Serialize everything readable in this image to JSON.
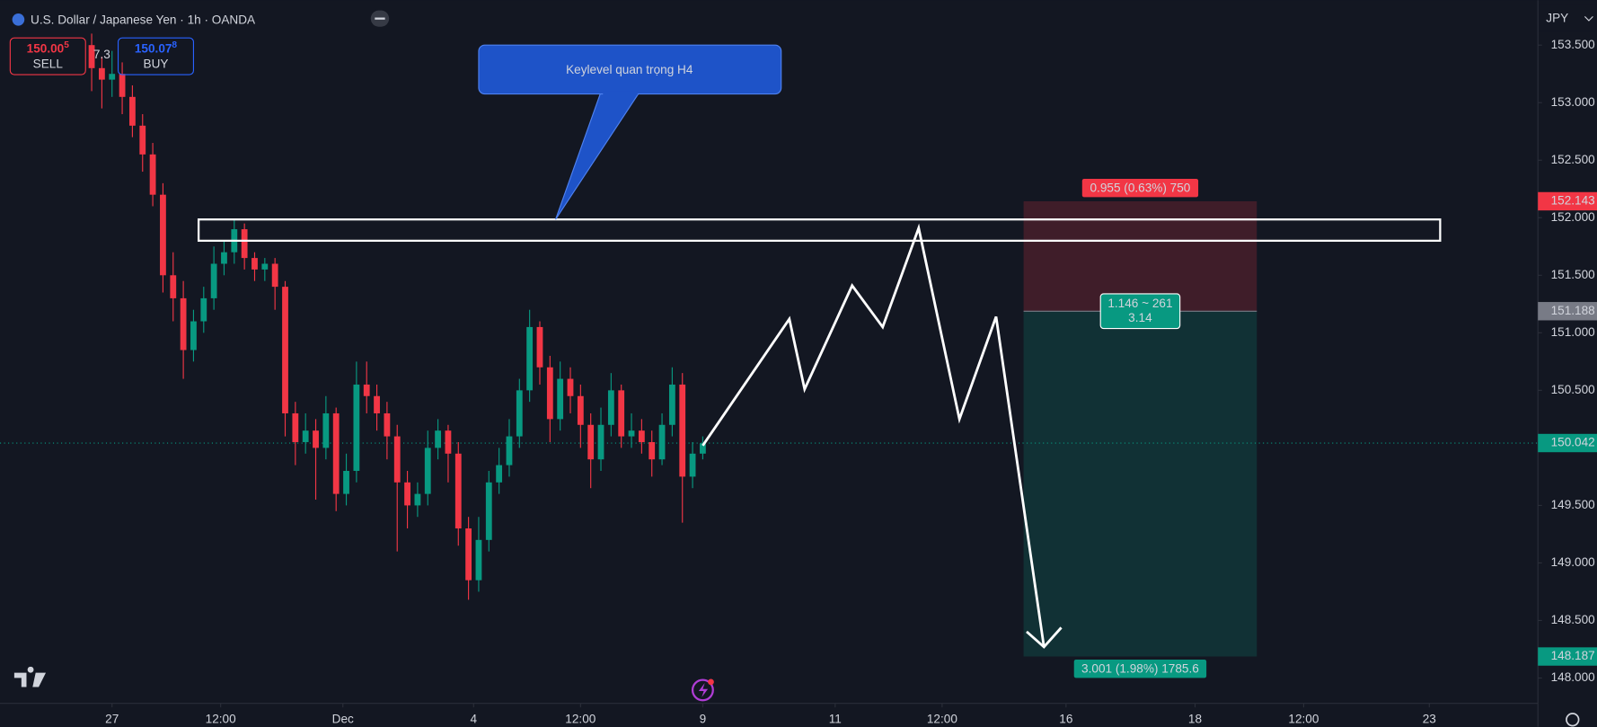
{
  "header": {
    "title": "U.S. Dollar / Japanese Yen · 1h · OANDA",
    "sell_price": "150.00",
    "sell_pip": "5",
    "sell": "SELL",
    "spread": "7.3",
    "buy_price": "150.07",
    "buy_pip": "8",
    "buy": "BUY",
    "currency": "JPY"
  },
  "chart_data": {
    "type": "candlestick",
    "up_color": "#089981",
    "down_color": "#f23645",
    "x": [
      27,
      30,
      33,
      36,
      39,
      42,
      45,
      48,
      51,
      54,
      57,
      60,
      63,
      66,
      69,
      72,
      75,
      78,
      81,
      84,
      87,
      90,
      93,
      96,
      99,
      102,
      105,
      108,
      111,
      114,
      117,
      120,
      123,
      126,
      129,
      132,
      135,
      138,
      141,
      144,
      147,
      150,
      153,
      156,
      159,
      162,
      165,
      168,
      171,
      174,
      177,
      180,
      183,
      186,
      189,
      192,
      195,
      198,
      201,
      204,
      207
    ],
    "open": [
      153.5,
      153.3,
      153.2,
      153.25,
      153.05,
      152.8,
      152.55,
      152.2,
      151.5,
      151.3,
      150.85,
      151.1,
      151.3,
      151.6,
      151.7,
      151.9,
      151.65,
      151.55,
      151.6,
      151.4,
      150.3,
      150.05,
      150.15,
      150.0,
      150.3,
      149.6,
      149.8,
      150.55,
      150.45,
      150.3,
      150.1,
      149.7,
      149.5,
      149.6,
      150.0,
      150.15,
      149.95,
      149.3,
      148.85,
      149.2,
      149.7,
      149.85,
      150.1,
      150.5,
      151.05,
      150.7,
      150.25,
      150.6,
      150.45,
      150.2,
      149.9,
      150.2,
      150.5,
      150.1,
      150.15,
      150.05,
      149.9,
      150.2,
      150.55,
      149.75,
      149.95
    ],
    "high": [
      153.6,
      153.4,
      153.45,
      153.35,
      153.15,
      152.9,
      152.65,
      152.3,
      151.7,
      151.45,
      151.2,
      151.4,
      151.75,
      151.8,
      151.98,
      151.95,
      151.7,
      151.65,
      151.65,
      151.45,
      150.4,
      150.3,
      150.25,
      150.45,
      150.35,
      149.95,
      150.75,
      150.75,
      150.55,
      150.4,
      150.2,
      149.8,
      149.7,
      150.15,
      150.25,
      150.2,
      150.05,
      149.4,
      149.4,
      149.8,
      150.0,
      150.25,
      150.6,
      151.2,
      151.1,
      150.8,
      150.75,
      150.7,
      150.55,
      150.3,
      150.35,
      150.65,
      150.55,
      150.3,
      150.25,
      150.15,
      150.3,
      150.7,
      150.65,
      150.05,
      150.1
    ],
    "low": [
      153.1,
      152.95,
      153.05,
      152.9,
      152.7,
      152.4,
      152.1,
      151.35,
      151.1,
      150.6,
      150.75,
      151.0,
      151.2,
      151.5,
      151.6,
      151.55,
      151.45,
      151.45,
      151.2,
      150.1,
      149.85,
      149.95,
      149.55,
      149.9,
      149.45,
      149.5,
      149.7,
      150.3,
      150.15,
      149.9,
      149.1,
      149.3,
      149.4,
      149.5,
      149.9,
      149.7,
      149.15,
      148.68,
      148.75,
      149.1,
      149.6,
      149.75,
      150.0,
      150.4,
      150.55,
      150.05,
      150.15,
      150.3,
      150.0,
      149.65,
      149.8,
      150.1,
      150.0,
      150.0,
      149.95,
      149.75,
      149.85,
      150.1,
      149.35,
      149.65,
      149.9
    ],
    "close": [
      153.3,
      153.2,
      153.25,
      153.05,
      152.8,
      152.55,
      152.2,
      151.5,
      151.3,
      150.85,
      151.1,
      151.3,
      151.6,
      151.7,
      151.9,
      151.65,
      151.55,
      151.6,
      151.4,
      150.3,
      150.05,
      150.15,
      150.0,
      150.3,
      149.6,
      149.8,
      150.55,
      150.45,
      150.3,
      150.1,
      149.7,
      149.5,
      149.6,
      150.0,
      150.15,
      149.95,
      149.3,
      148.85,
      149.2,
      149.7,
      149.85,
      150.1,
      150.5,
      151.05,
      150.7,
      150.25,
      150.6,
      150.45,
      150.2,
      149.9,
      150.2,
      150.5,
      150.1,
      150.15,
      150.05,
      149.9,
      150.2,
      150.55,
      149.75,
      149.95,
      150.04
    ],
    "xlim": [
      0,
      452.4
    ],
    "ylim": [
      147.78,
      153.89
    ],
    "xticks": [
      {
        "value": 33,
        "label": "27"
      },
      {
        "value": 65,
        "label": "12:00"
      },
      {
        "value": 101,
        "label": "Dec"
      },
      {
        "value": 139.5,
        "label": "4"
      },
      {
        "value": 171,
        "label": "12:00"
      },
      {
        "value": 207,
        "label": "9"
      },
      {
        "value": 246,
        "label": "11"
      },
      {
        "value": 277.5,
        "label": "12:00"
      },
      {
        "value": 314,
        "label": "16"
      },
      {
        "value": 352,
        "label": "18"
      },
      {
        "value": 384,
        "label": "12:00"
      },
      {
        "value": 421,
        "label": "23"
      }
    ],
    "yticks": [
      {
        "value": 148,
        "label": "148.000"
      },
      {
        "value": 148.5,
        "label": "148.500"
      },
      {
        "value": 149,
        "label": "149.000"
      },
      {
        "value": 149.5,
        "label": "149.500"
      },
      {
        "value": 150,
        "label": "150.000"
      },
      {
        "value": 150.5,
        "label": "150.500"
      },
      {
        "value": 151,
        "label": "151.000"
      },
      {
        "value": 151.5,
        "label": "151.500"
      },
      {
        "value": 152,
        "label": "152.000"
      },
      {
        "value": 152.5,
        "label": "152.500"
      },
      {
        "value": 153,
        "label": "153.000"
      },
      {
        "value": 153.5,
        "label": "153.500"
      }
    ],
    "last_price": {
      "value": 150.042,
      "label": "150.042",
      "color": "#089981"
    },
    "price_tags": [
      {
        "value": 152.143,
        "label": "152.143",
        "color": "#f23645"
      },
      {
        "value": 151.188,
        "label": "151.188",
        "color": "#787b86"
      },
      {
        "value": 148.187,
        "label": "148.187",
        "color": "#089981"
      }
    ],
    "key_level": {
      "x": [
        58.5,
        424.2
      ],
      "y": [
        151.8,
        151.985
      ],
      "label": "Keylevel quan trọng H4"
    },
    "projection": {
      "x": [
        207,
        232.5,
        237,
        251,
        260,
        270.6,
        282.6,
        293.4,
        307.5
      ],
      "y": [
        150.02,
        151.12,
        150.51,
        151.41,
        151.05,
        151.91,
        150.25,
        151.14,
        148.27
      ]
    },
    "position": {
      "x": [
        301.5,
        370.2
      ],
      "stop": 152.143,
      "entry": 151.188,
      "target": 148.187,
      "stop_label": "0.955 (0.63%) 750",
      "entry_label": "1.146 ~ 261",
      "ratio_label": "3.14",
      "target_label": "3.001 (1.98%) 1785.6"
    }
  }
}
